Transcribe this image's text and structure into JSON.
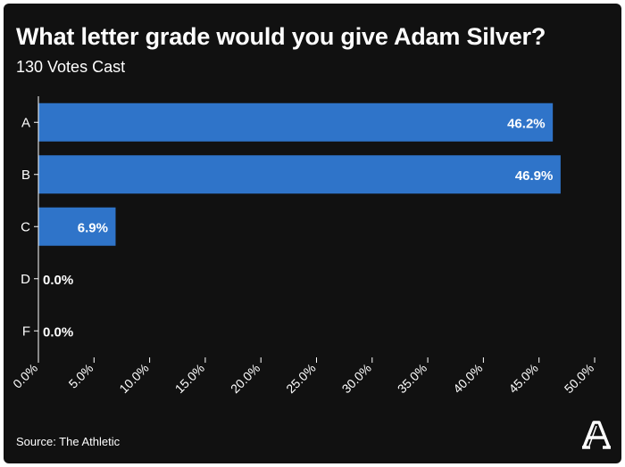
{
  "header": {
    "title": "What letter grade would you give Adam Silver?",
    "subtitle": "130 Votes Cast"
  },
  "footer": {
    "source": "Source: The Athletic",
    "logo_icon": "the-athletic-logo-icon"
  },
  "colors": {
    "background": "#111111",
    "bar": "#2f74c9",
    "text": "#ffffff",
    "axis": "#ffffff"
  },
  "chart_data": {
    "type": "bar",
    "orientation": "horizontal",
    "title": "What letter grade would you give Adam Silver?",
    "subtitle": "130 Votes Cast",
    "categories": [
      "A",
      "B",
      "C",
      "D",
      "F"
    ],
    "values": [
      46.2,
      46.9,
      6.9,
      0.0,
      0.0
    ],
    "value_labels": [
      "46.2%",
      "46.9%",
      "6.9%",
      "0.0%",
      "0.0%"
    ],
    "xlim": [
      0,
      50
    ],
    "xticks": [
      "0.0%",
      "5.0%",
      "10.0%",
      "15.0%",
      "20.0%",
      "25.0%",
      "30.0%",
      "35.0%",
      "40.0%",
      "45.0%",
      "50.0%"
    ],
    "xlabel": "",
    "ylabel": "",
    "grid": false,
    "legend": "none"
  }
}
